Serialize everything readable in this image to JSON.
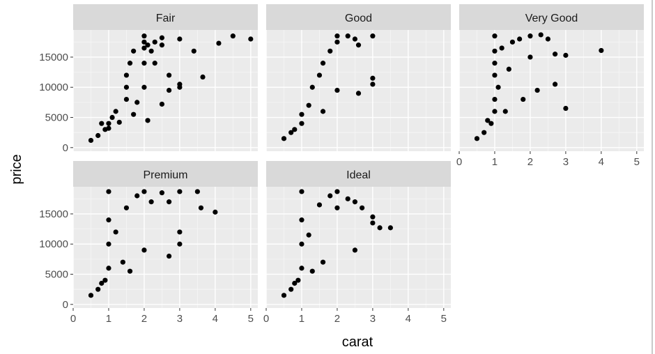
{
  "chart_data": {
    "type": "scatter",
    "facet_by": "cut",
    "xlabel": "carat",
    "ylabel": "price",
    "xlim": [
      0,
      5.2
    ],
    "ylim": [
      -600,
      19500
    ],
    "x_ticks": [
      0,
      1,
      2,
      3,
      4,
      5
    ],
    "x_tick_labels": [
      "0",
      "1",
      "2",
      "3",
      "4",
      "5"
    ],
    "y_ticks": [
      0,
      5000,
      10000,
      15000
    ],
    "y_tick_labels": [
      "0",
      "5000",
      "10000",
      "15000"
    ],
    "grid": true,
    "legend": "none",
    "colors": {
      "panel_background": "#ebebeb",
      "grid_major": "#ffffff",
      "strip_background": "#d9d9d9",
      "point": "#000000"
    },
    "facets": [
      {
        "name": "Fair",
        "points": [
          [
            0.5,
            1200
          ],
          [
            0.7,
            2000
          ],
          [
            0.9,
            3000
          ],
          [
            1.0,
            4000
          ],
          [
            1.1,
            5000
          ],
          [
            1.2,
            6000
          ],
          [
            1.5,
            8000
          ],
          [
            1.5,
            10000
          ],
          [
            1.5,
            12000
          ],
          [
            1.6,
            14000
          ],
          [
            1.7,
            16000
          ],
          [
            2.0,
            10000
          ],
          [
            2.0,
            14000
          ],
          [
            2.0,
            16500
          ],
          [
            2.0,
            17500
          ],
          [
            2.0,
            18500
          ],
          [
            2.1,
            17000
          ],
          [
            2.2,
            16000
          ],
          [
            2.3,
            14000
          ],
          [
            2.3,
            17500
          ],
          [
            2.5,
            18200
          ],
          [
            2.5,
            17000
          ],
          [
            2.7,
            9500
          ],
          [
            2.7,
            12000
          ],
          [
            3.0,
            10500
          ],
          [
            3.0,
            10000
          ],
          [
            3.0,
            18000
          ],
          [
            3.4,
            16000
          ],
          [
            3.65,
            11700
          ],
          [
            4.1,
            17300
          ],
          [
            4.5,
            18500
          ],
          [
            5.0,
            18000
          ],
          [
            1.7,
            5500
          ],
          [
            2.1,
            4500
          ],
          [
            2.5,
            7200
          ],
          [
            1.3,
            4200
          ],
          [
            0.8,
            4000
          ],
          [
            1.0,
            3200
          ],
          [
            1.8,
            7500
          ]
        ]
      },
      {
        "name": "Good",
        "points": [
          [
            0.5,
            1500
          ],
          [
            0.8,
            3000
          ],
          [
            1.0,
            4000
          ],
          [
            1.0,
            5500
          ],
          [
            1.2,
            7000
          ],
          [
            1.3,
            10000
          ],
          [
            1.5,
            12000
          ],
          [
            1.6,
            14000
          ],
          [
            1.8,
            16000
          ],
          [
            2.0,
            17500
          ],
          [
            2.0,
            18500
          ],
          [
            2.3,
            18500
          ],
          [
            2.5,
            18000
          ],
          [
            2.6,
            17000
          ],
          [
            3.0,
            18500
          ],
          [
            3.0,
            11500
          ],
          [
            3.0,
            10500
          ],
          [
            2.6,
            9000
          ],
          [
            1.6,
            6000
          ],
          [
            2.0,
            9500
          ],
          [
            0.7,
            2500
          ]
        ]
      },
      {
        "name": "Very Good",
        "points": [
          [
            0.5,
            1500
          ],
          [
            0.7,
            2500
          ],
          [
            0.9,
            4000
          ],
          [
            1.0,
            6000
          ],
          [
            1.0,
            8000
          ],
          [
            1.1,
            10000
          ],
          [
            1.0,
            12000
          ],
          [
            1.0,
            14000
          ],
          [
            1.0,
            16000
          ],
          [
            1.0,
            18500
          ],
          [
            1.2,
            16500
          ],
          [
            1.4,
            13000
          ],
          [
            1.5,
            17500
          ],
          [
            1.7,
            18000
          ],
          [
            2.0,
            18500
          ],
          [
            2.0,
            15000
          ],
          [
            2.3,
            18700
          ],
          [
            2.5,
            18000
          ],
          [
            2.7,
            10500
          ],
          [
            2.7,
            15500
          ],
          [
            3.0,
            6500
          ],
          [
            3.0,
            15300
          ],
          [
            4.0,
            16100
          ],
          [
            0.8,
            4500
          ],
          [
            2.2,
            9500
          ],
          [
            1.8,
            8000
          ],
          [
            1.3,
            6000
          ]
        ]
      },
      {
        "name": "Premium",
        "points": [
          [
            0.5,
            1500
          ],
          [
            0.7,
            2500
          ],
          [
            0.9,
            4000
          ],
          [
            1.0,
            6000
          ],
          [
            1.0,
            10000
          ],
          [
            1.0,
            14000
          ],
          [
            1.0,
            18700
          ],
          [
            1.2,
            12000
          ],
          [
            1.5,
            16000
          ],
          [
            1.8,
            18000
          ],
          [
            2.0,
            18700
          ],
          [
            2.2,
            17000
          ],
          [
            2.5,
            18500
          ],
          [
            2.7,
            17000
          ],
          [
            3.0,
            18700
          ],
          [
            3.0,
            12000
          ],
          [
            3.0,
            10000
          ],
          [
            3.5,
            18700
          ],
          [
            3.6,
            16000
          ],
          [
            4.0,
            15300
          ],
          [
            2.7,
            8000
          ],
          [
            2.0,
            9000
          ],
          [
            1.4,
            7000
          ],
          [
            0.8,
            3500
          ],
          [
            1.6,
            5500
          ]
        ]
      },
      {
        "name": "Ideal",
        "points": [
          [
            0.5,
            1500
          ],
          [
            0.7,
            2500
          ],
          [
            0.9,
            4000
          ],
          [
            1.0,
            6000
          ],
          [
            1.0,
            10000
          ],
          [
            1.0,
            14000
          ],
          [
            1.0,
            18700
          ],
          [
            1.2,
            11500
          ],
          [
            1.5,
            16500
          ],
          [
            1.8,
            18000
          ],
          [
            2.0,
            18700
          ],
          [
            2.0,
            16000
          ],
          [
            2.3,
            17500
          ],
          [
            2.5,
            17000
          ],
          [
            2.7,
            16000
          ],
          [
            3.0,
            13500
          ],
          [
            3.0,
            14500
          ],
          [
            3.2,
            12700
          ],
          [
            3.5,
            12700
          ],
          [
            2.5,
            9000
          ],
          [
            1.6,
            7000
          ],
          [
            0.8,
            3500
          ],
          [
            1.3,
            5500
          ]
        ]
      }
    ]
  }
}
